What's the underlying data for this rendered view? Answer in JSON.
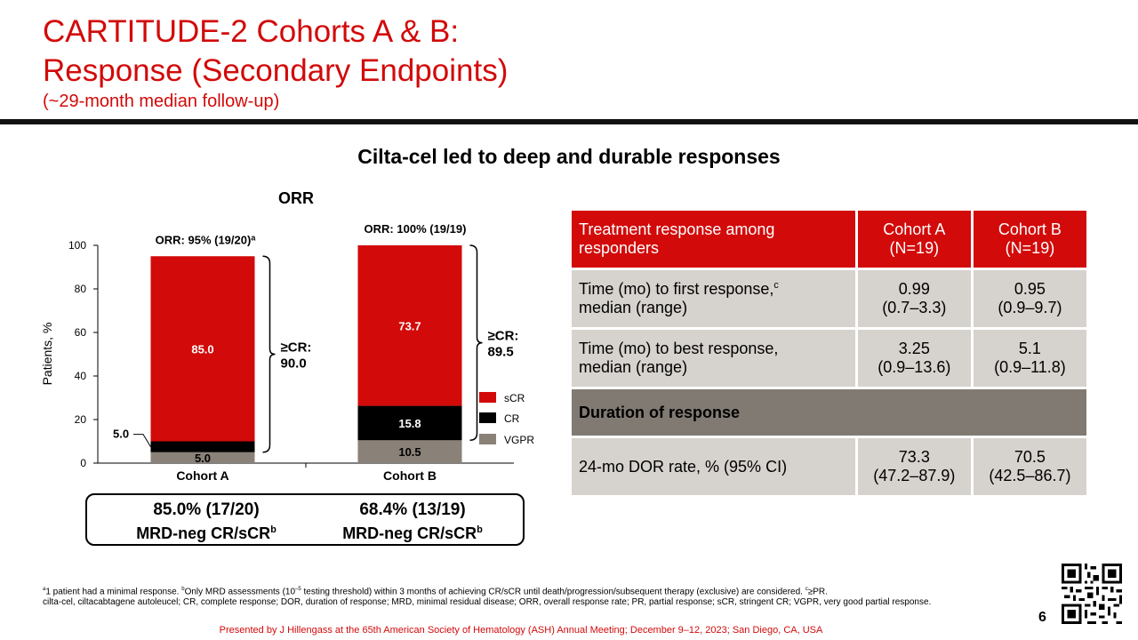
{
  "header": {
    "title_line1": "CARTITUDE-2 Cohorts A & B:",
    "title_line2": "Response (Secondary Endpoints)",
    "subtitle": "(~29-month median follow-up)"
  },
  "headline": "Cilta-cel led to deep and durable responses",
  "chart_data": {
    "type": "bar",
    "stacked": true,
    "title": "ORR",
    "ylabel": "Patients, %",
    "ylim": [
      0,
      100
    ],
    "yticks": [
      "0",
      "20",
      "40",
      "60",
      "80",
      "100"
    ],
    "categories": [
      "Cohort A",
      "Cohort B"
    ],
    "series": [
      {
        "name": "VGPR",
        "color": "#8a8178",
        "values": [
          5.0,
          10.5
        ],
        "labels": [
          "5.0",
          "10.5"
        ]
      },
      {
        "name": "CR",
        "color": "#000000",
        "values": [
          5.0,
          15.8
        ],
        "labels": [
          "",
          "15.8"
        ]
      },
      {
        "name": "sCR",
        "color": "#d20a0a",
        "values": [
          85.0,
          73.7
        ],
        "labels": [
          "85.0",
          "73.7"
        ]
      }
    ],
    "orr_labels": [
      "ORR: 95% (19/20)",
      "ORR: 100% (19/19)"
    ],
    "orr_sup": [
      "a",
      ""
    ],
    "cr_callout": [
      "≥CR:",
      "≥CR:"
    ],
    "cr_values": [
      "90.0",
      "89.5"
    ],
    "side_label": "5.0",
    "legend": [
      "sCR",
      "CR",
      "VGPR"
    ]
  },
  "mrd": [
    {
      "value": "85.0% (17/20)",
      "label": "MRD-neg CR/sCR",
      "sup": "b"
    },
    {
      "value": "68.4% (13/19)",
      "label": "MRD-neg CR/sCR",
      "sup": "b"
    }
  ],
  "table": {
    "header": [
      "Treatment response among responders",
      "Cohort A\n(N=19)",
      "Cohort B\n(N=19)"
    ],
    "header_a_line1": "Cohort A",
    "header_a_line2": "(N=19)",
    "header_b_line1": "Cohort B",
    "header_b_line2": "(N=19)",
    "rows": [
      {
        "label1": "Time (mo) to first response,",
        "sup": "c",
        "label2": "median (range)",
        "a1": "0.99",
        "a2": "(0.7–3.3)",
        "b1": "0.95",
        "b2": "(0.9–9.7)"
      },
      {
        "label1": "Time  (mo) to best response,",
        "sup": "",
        "label2": "median (range)",
        "a1": "3.25",
        "a2": "(0.9–13.6)",
        "b1": "5.1",
        "b2": "(0.9–11.8)"
      }
    ],
    "section": "Duration of response",
    "dor": {
      "label": "24-mo DOR rate, % (95% CI)",
      "a1": "73.3",
      "a2": "(47.2–87.9)",
      "b1": "70.5",
      "b2": "(42.5–86.7)"
    }
  },
  "footnotes": {
    "a_sup": "a",
    "a": "1 patient had a minimal response. ",
    "b_sup": "b",
    "b1": "Only MRD assessments (10",
    "b_exp": "–5",
    "b2": " testing threshold) within 3 months of achieving CR/sCR until death/progression/subsequent therapy (exclusive) are considered. ",
    "c_sup": "c",
    "c": "≥PR.",
    "abbrev": "cilta-cel, ciltacabtagene autoleucel; CR, complete response; DOR, duration of response; MRD, minimal residual disease; ORR, overall response rate; PR, partial response; sCR, stringent CR; VGPR, very good partial response."
  },
  "presenter": "Presented by J Hillengass at the 65th American Society of Hematology (ASH) Annual Meeting; December 9–12, 2023; San Diego, CA, USA",
  "page_number": "6",
  "colors": {
    "brand_red": "#d20a0a",
    "gray_cell": "#d6d2cd",
    "dark_gray": "#817a72"
  }
}
